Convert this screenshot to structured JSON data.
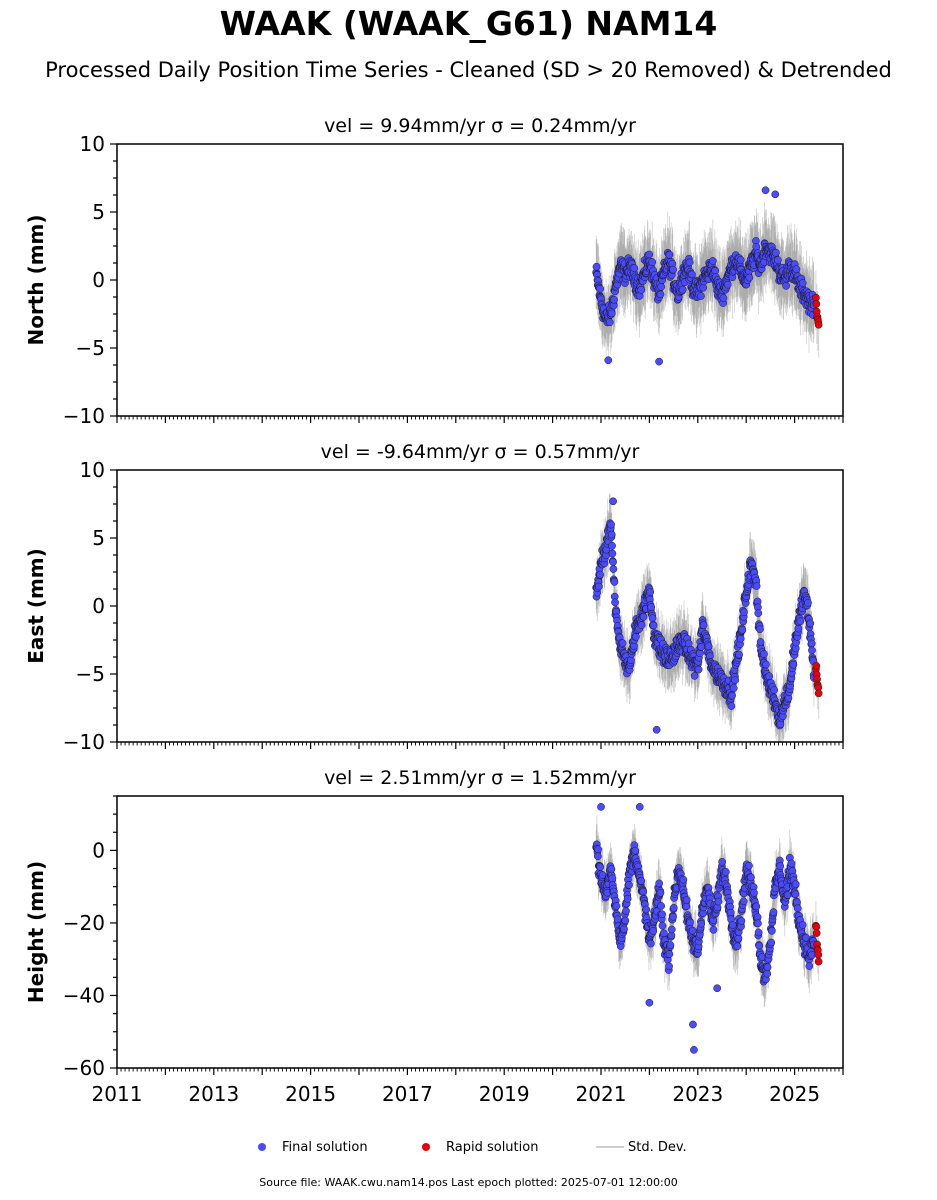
{
  "figure": {
    "title": "WAAK (WAAK_G61) NAM14",
    "subtitle": "Processed Daily Position Time Series - Cleaned (SD > 20 Removed) & Detrended",
    "footer": "Source file: WAAK.cwu.nam14.pos  Last epoch plotted: 2025-07-01 12:00:00"
  },
  "legend": {
    "final_label": "Final solution",
    "rapid_label": "Rapid solution",
    "std_label": "Std. Dev."
  },
  "colors": {
    "final": "#4a4aff",
    "rapid": "#e8000b",
    "std": "#bdbdbd"
  },
  "chart_data": [
    {
      "type": "scatter",
      "title": "vel = 9.94mm/yr   σ = 0.24mm/yr",
      "ylabel": "North (mm)",
      "xlim": [
        2011,
        2026
      ],
      "ylim": [
        -10,
        10
      ],
      "yticks": [
        -10,
        -5,
        0,
        5,
        10
      ],
      "final_segments": [
        {
          "x": [
            2020.9,
            2021.0,
            2021.1,
            2021.2,
            2021.3,
            2021.4,
            2021.5,
            2021.6,
            2021.7,
            2021.8,
            2021.9,
            2022.0,
            2022.1,
            2022.2,
            2022.3,
            2022.4,
            2022.5,
            2022.6,
            2022.7,
            2022.8,
            2022.9,
            2023.0,
            2023.1,
            2023.2,
            2023.3,
            2023.4,
            2023.5,
            2023.6,
            2023.7,
            2023.8,
            2023.9,
            2024.0,
            2024.1,
            2024.2,
            2024.3,
            2024.4,
            2024.5,
            2024.6,
            2024.7,
            2024.8,
            2024.9,
            2025.0,
            2025.1,
            2025.2,
            2025.3,
            2025.4
          ],
          "y": [
            0.5,
            -1.5,
            -3.0,
            -2.5,
            -0.5,
            1.0,
            0.5,
            1.0,
            0.0,
            -0.5,
            0.5,
            1.5,
            0.0,
            -1.0,
            0.5,
            1.5,
            0.0,
            -1.0,
            0.5,
            1.0,
            -0.5,
            -1.0,
            0.0,
            0.5,
            1.0,
            -0.5,
            -1.0,
            0.0,
            1.0,
            1.5,
            0.5,
            0.0,
            1.0,
            2.0,
            1.0,
            2.5,
            2.0,
            1.5,
            0.5,
            0.0,
            1.0,
            0.5,
            -0.5,
            -1.0,
            -1.5,
            -2.0
          ]
        }
      ],
      "final_outliers": {
        "x": [
          2021.15,
          2022.2,
          2024.4,
          2024.6
        ],
        "y": [
          -5.9,
          -6.0,
          6.6,
          6.3
        ]
      },
      "rapid": {
        "x": [
          2025.44,
          2025.46,
          2025.48,
          2025.5
        ],
        "y": [
          -1.5,
          -2.5,
          -3.0,
          -3.5
        ]
      },
      "band": 2.2
    },
    {
      "type": "scatter",
      "title": "vel = -9.64mm/yr   σ = 0.57mm/yr",
      "ylabel": "East (mm)",
      "xlim": [
        2011,
        2026
      ],
      "ylim": [
        -10,
        10
      ],
      "yticks": [
        -10,
        -5,
        0,
        5,
        10
      ],
      "final_segments": [
        {
          "x": [
            2020.9,
            2021.0,
            2021.1,
            2021.2,
            2021.3,
            2021.4,
            2021.5,
            2021.6,
            2021.7,
            2021.8,
            2021.9,
            2022.0,
            2022.1,
            2022.2,
            2022.3,
            2022.4,
            2022.5,
            2022.6,
            2022.7,
            2022.8,
            2022.9,
            2023.0,
            2023.1,
            2023.2,
            2023.3,
            2023.4,
            2023.5,
            2023.6,
            2023.7,
            2023.8,
            2023.9,
            2024.0,
            2024.1,
            2024.2,
            2024.3,
            2024.4,
            2024.5,
            2024.6,
            2024.7,
            2024.8,
            2024.9,
            2025.0,
            2025.1,
            2025.2,
            2025.3,
            2025.4
          ],
          "y": [
            1.0,
            3.0,
            4.0,
            6.0,
            0.0,
            -3.0,
            -4.0,
            -4.5,
            -2.0,
            -1.0,
            0.0,
            1.0,
            -2.0,
            -3.0,
            -3.5,
            -4.0,
            -3.5,
            -3.0,
            -2.5,
            -3.5,
            -4.0,
            -4.5,
            -1.5,
            -3.0,
            -4.5,
            -5.0,
            -5.5,
            -6.0,
            -6.5,
            -4.0,
            -2.0,
            1.0,
            3.0,
            2.0,
            -3.0,
            -5.0,
            -6.0,
            -7.0,
            -8.5,
            -7.0,
            -6.0,
            -3.0,
            -1.0,
            1.0,
            -1.0,
            -5.0
          ]
        }
      ],
      "final_outliers": {
        "x": [
          2021.25,
          2022.15
        ],
        "y": [
          7.7,
          -9.1
        ]
      },
      "rapid": {
        "x": [
          2025.44,
          2025.46,
          2025.48,
          2025.5
        ],
        "y": [
          -4.2,
          -5.0,
          -5.8,
          -6.5
        ]
      },
      "band": 1.8
    },
    {
      "type": "scatter",
      "title": "vel = 2.51mm/yr   σ = 1.52mm/yr",
      "ylabel": "Height (mm)",
      "xlim": [
        2011,
        2026
      ],
      "ylim": [
        -60,
        15
      ],
      "yticks": [
        -60,
        -40,
        -20,
        0
      ],
      "final_segments": [
        {
          "x": [
            2020.9,
            2021.0,
            2021.1,
            2021.2,
            2021.3,
            2021.4,
            2021.5,
            2021.6,
            2021.7,
            2021.8,
            2021.9,
            2022.0,
            2022.1,
            2022.2,
            2022.3,
            2022.4,
            2022.5,
            2022.6,
            2022.7,
            2022.8,
            2022.9,
            2023.0,
            2023.1,
            2023.2,
            2023.3,
            2023.4,
            2023.5,
            2023.6,
            2023.7,
            2023.8,
            2023.9,
            2024.0,
            2024.1,
            2024.2,
            2024.3,
            2024.4,
            2024.5,
            2024.6,
            2024.7,
            2024.8,
            2024.9,
            2025.0,
            2025.1,
            2025.2,
            2025.3,
            2025.4
          ],
          "y": [
            2,
            -8,
            -12,
            -5,
            -15,
            -25,
            -18,
            -5,
            0,
            -8,
            -15,
            -25,
            -20,
            -10,
            -25,
            -30,
            -15,
            -5,
            -10,
            -20,
            -25,
            -28,
            -15,
            -10,
            -20,
            -15,
            -5,
            -10,
            -20,
            -25,
            -18,
            -5,
            -10,
            -15,
            -30,
            -35,
            -25,
            -10,
            -5,
            -15,
            -5,
            -10,
            -20,
            -25,
            -30,
            -25
          ]
        }
      ],
      "final_outliers": {
        "x": [
          2021.0,
          2021.8,
          2022.0,
          2022.9,
          2022.92,
          2023.4
        ],
        "y": [
          12,
          12,
          -42,
          -48,
          -55,
          -38
        ]
      },
      "rapid": {
        "x": [
          2025.44,
          2025.46,
          2025.48,
          2025.5
        ],
        "y": [
          -20,
          -24,
          -28,
          -30
        ]
      },
      "band": 6
    }
  ],
  "xaxis": {
    "tick_labels": [
      "2011",
      "2013",
      "2015",
      "2017",
      "2019",
      "2021",
      "2023",
      "2025"
    ],
    "tick_values": [
      2011,
      2013,
      2015,
      2017,
      2019,
      2021,
      2023,
      2025
    ]
  }
}
